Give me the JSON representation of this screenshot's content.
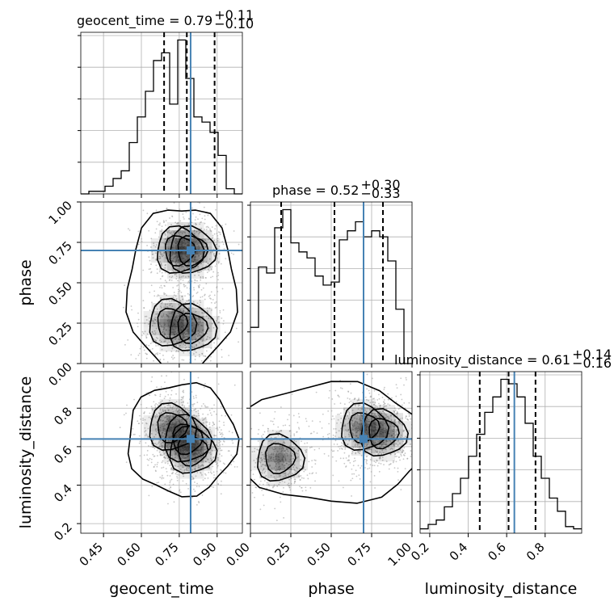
{
  "chart_data": {
    "type": "corner",
    "parameters": [
      {
        "name": "geocent_time",
        "axis_label": "geocent_time",
        "range": [
          0.36,
          1.0
        ],
        "ticks": [
          0.45,
          0.6,
          0.75,
          0.9
        ],
        "tick_labels": [
          "0.45",
          "0.60",
          "0.75",
          "0.90"
        ],
        "truth": 0.795,
        "quantiles": [
          0.69,
          0.78,
          0.89
        ],
        "title_main": "geocent_time = 0.79",
        "title_plus": "+0.11",
        "title_minus": "−0.10",
        "hist_bins": [
          0.36,
          0.392,
          0.424,
          0.456,
          0.488,
          0.52,
          0.552,
          0.584,
          0.616,
          0.648,
          0.68,
          0.712,
          0.744,
          0.776,
          0.808,
          0.84,
          0.872,
          0.904,
          0.936,
          0.968,
          1.0
        ],
        "hist_counts": [
          0,
          1,
          1,
          3,
          6,
          9,
          20,
          30,
          40,
          52,
          55,
          35,
          60,
          45,
          30,
          28,
          24,
          15,
          2,
          0
        ]
      },
      {
        "name": "phase",
        "axis_label": "phase",
        "range": [
          0.0,
          1.0
        ],
        "ticks": [
          0.0,
          0.25,
          0.5,
          0.75,
          1.0
        ],
        "tick_labels": [
          "0.00",
          "0.25",
          "0.50",
          "0.75",
          "1.00"
        ],
        "truth": 0.7,
        "quantiles": [
          0.19,
          0.52,
          0.82
        ],
        "title_main": "phase = 0.52",
        "title_plus": "+0.30",
        "title_minus": "−0.33",
        "hist_bins": [
          0.0,
          0.05,
          0.1,
          0.15,
          0.2,
          0.25,
          0.3,
          0.35,
          0.4,
          0.45,
          0.5,
          0.55,
          0.6,
          0.65,
          0.7,
          0.75,
          0.8,
          0.85,
          0.9,
          0.95,
          1.0
        ],
        "hist_counts": [
          12,
          32,
          30,
          45,
          51,
          40,
          37,
          35,
          29,
          26,
          27,
          41,
          44,
          47,
          42,
          44,
          42,
          34,
          18,
          0
        ]
      },
      {
        "name": "luminosity_distance",
        "axis_label": "luminosity_distance",
        "range": [
          0.15,
          0.99
        ],
        "ticks": [
          0.2,
          0.4,
          0.6,
          0.8
        ],
        "tick_labels": [
          "0.2",
          "0.4",
          "0.6",
          "0.8"
        ],
        "truth": 0.64,
        "quantiles": [
          0.46,
          0.61,
          0.75
        ],
        "title_main": "luminosity_distance = 0.61",
        "title_plus": "+0.14",
        "title_minus": "−0.16",
        "hist_bins": [
          0.15,
          0.192,
          0.234,
          0.276,
          0.318,
          0.36,
          0.402,
          0.444,
          0.486,
          0.528,
          0.57,
          0.612,
          0.654,
          0.696,
          0.738,
          0.78,
          0.822,
          0.864,
          0.906,
          0.948,
          0.99
        ],
        "hist_counts": [
          2,
          4,
          6,
          12,
          18,
          25,
          35,
          45,
          55,
          62,
          70,
          68,
          62,
          50,
          35,
          25,
          16,
          10,
          3,
          2
        ]
      }
    ],
    "panel_2d": [
      {
        "x": "geocent_time",
        "y": "phase",
        "density_peaks": [
          [
            0.72,
            0.25,
            0.1
          ],
          [
            0.8,
            0.22,
            0.08
          ],
          [
            0.75,
            0.7,
            0.12
          ],
          [
            0.8,
            0.7,
            0.09
          ]
        ]
      },
      {
        "x": "geocent_time",
        "y": "luminosity_distance",
        "density_peaks": [
          [
            0.78,
            0.64,
            0.12
          ],
          [
            0.72,
            0.7,
            0.08
          ],
          [
            0.8,
            0.58,
            0.09
          ]
        ]
      },
      {
        "x": "phase",
        "y": "luminosity_distance",
        "density_peaks": [
          [
            0.18,
            0.54,
            0.14
          ],
          [
            0.7,
            0.7,
            0.15
          ],
          [
            0.82,
            0.67,
            0.1
          ]
        ]
      }
    ],
    "grid": true,
    "truth_color": "#4682b4"
  }
}
